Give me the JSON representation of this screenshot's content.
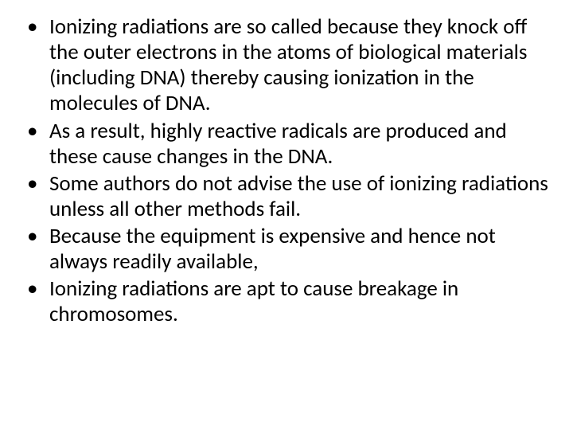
{
  "slide": {
    "background_color": "#ffffff",
    "text_color": "#000000",
    "font_family": "Calibri",
    "body_fontsize_pt": 27,
    "line_height": 1.19,
    "bullets": [
      "Ionizing radiations are so called because they knock off the outer electrons in the atoms of biological materials (including DNA) thereby causing ionization in the molecules of DNA.",
      "As a result, highly reactive radicals are produced and these cause changes in the DNA.",
      "Some authors do not advise the use of ionizing radiations unless all other methods fail.",
      "Because the equipment is expensive and hence not always readily available,",
      "Ionizing radiations are apt to cause breakage in chromosomes."
    ]
  }
}
